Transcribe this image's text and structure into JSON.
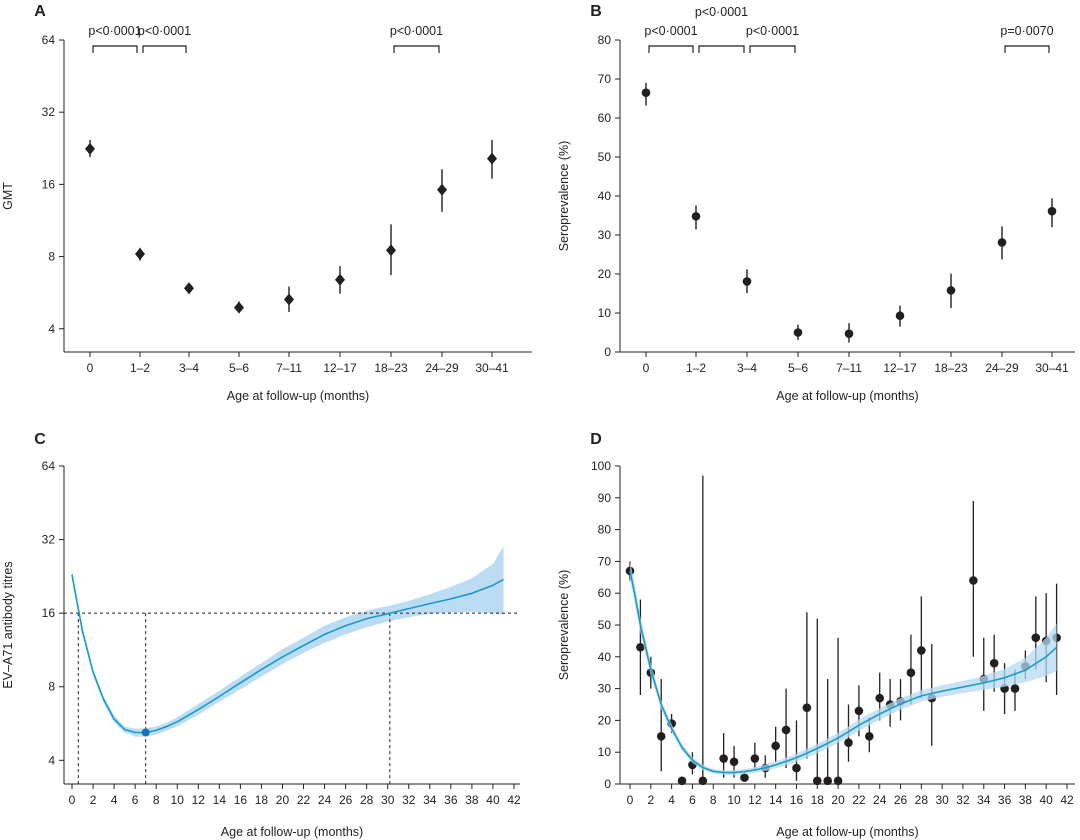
{
  "chart_data": [
    {
      "panel": "A",
      "type": "scatter",
      "marker": "diamond",
      "xlabel": "Age at follow-up (months)",
      "ylabel": "GMT",
      "y_scale": "log2",
      "yticks": [
        4,
        8,
        16,
        32,
        64
      ],
      "ylim": [
        3.2,
        64
      ],
      "categories": [
        "0",
        "1–2",
        "3–4",
        "5–6",
        "7–11",
        "12–17",
        "18–23",
        "24–29",
        "30–41"
      ],
      "values": [
        22.5,
        8.2,
        5.9,
        4.9,
        5.3,
        6.4,
        8.5,
        15.2,
        20.5
      ],
      "ci_low": [
        20.8,
        7.7,
        5.6,
        4.7,
        4.7,
        5.6,
        6.7,
        12.3,
        16.9
      ],
      "ci_high": [
        24.5,
        8.7,
        6.2,
        5.2,
        6.0,
        7.3,
        10.9,
        18.5,
        24.5
      ],
      "brackets": [
        {
          "from": 0,
          "to": 1,
          "label": "p<0·0001",
          "level": 0
        },
        {
          "from": 1,
          "to": 2,
          "label": "p<0·0001",
          "level": 0
        },
        {
          "from": 6,
          "to": 7,
          "label": "p<0·0001",
          "level": 0
        }
      ]
    },
    {
      "panel": "B",
      "type": "scatter",
      "marker": "circle",
      "xlabel": "Age at follow-up (months)",
      "ylabel": "Seroprevalence (%)",
      "yticks": [
        0,
        10,
        20,
        30,
        40,
        50,
        60,
        70,
        80
      ],
      "ylim": [
        0,
        80
      ],
      "categories": [
        "0",
        "1–2",
        "3–4",
        "5–6",
        "7–11",
        "12–17",
        "18–23",
        "24–29",
        "30–41"
      ],
      "values": [
        66.5,
        34.8,
        18.1,
        5.0,
        4.7,
        9.3,
        15.8,
        28.1,
        36.1
      ],
      "ci_low": [
        63.2,
        31.4,
        15.1,
        3.1,
        2.4,
        6.5,
        11.3,
        23.7,
        32.0
      ],
      "ci_high": [
        69.0,
        37.6,
        21.2,
        7.0,
        7.4,
        11.9,
        20.1,
        32.2,
        39.4
      ],
      "brackets": [
        {
          "from": 0,
          "to": 1,
          "label": "p<0·0001",
          "level": 0
        },
        {
          "from": 1,
          "to": 2,
          "label": "p<0·0001",
          "level": 1
        },
        {
          "from": 2,
          "to": 3,
          "label": "p<0·0001",
          "level": 0
        },
        {
          "from": 7,
          "to": 8,
          "label": "p=0·0070",
          "level": 0
        }
      ]
    },
    {
      "panel": "C",
      "type": "line",
      "xlabel": "Age at follow-up (months)",
      "ylabel": "EV–A71 antibody titres",
      "y_scale": "log2",
      "xticks": [
        0,
        2,
        4,
        6,
        8,
        10,
        12,
        14,
        16,
        18,
        20,
        22,
        24,
        26,
        28,
        30,
        32,
        34,
        36,
        38,
        40,
        42
      ],
      "xlim": [
        0,
        42
      ],
      "yticks": [
        4,
        8,
        16,
        32,
        64
      ],
      "ylim": [
        3.2,
        64
      ],
      "reference_y": 16,
      "reference_x": [
        0.6,
        7.0,
        30.2
      ],
      "minimum_point": {
        "x": 7.0,
        "y": 5.2
      },
      "line_color": "#1a9bc7",
      "band_color": "#b5d8f3",
      "x": [
        0,
        0.5,
        1,
        2,
        3,
        4,
        5,
        6,
        7,
        8,
        9,
        10,
        12,
        14,
        16,
        18,
        20,
        22,
        24,
        26,
        28,
        30,
        32,
        34,
        36,
        38,
        40,
        41
      ],
      "fit": [
        23,
        17.5,
        13.5,
        9.2,
        7.1,
        5.9,
        5.35,
        5.2,
        5.2,
        5.3,
        5.5,
        5.75,
        6.45,
        7.3,
        8.3,
        9.4,
        10.6,
        11.8,
        13.1,
        14.2,
        15.2,
        15.9,
        16.7,
        17.5,
        18.3,
        19.3,
        20.8,
        22
      ],
      "lower": [
        22,
        16.8,
        13.0,
        8.9,
        6.9,
        5.7,
        5.2,
        5.0,
        5.0,
        5.1,
        5.3,
        5.5,
        6.15,
        6.95,
        7.8,
        8.8,
        9.9,
        11.0,
        12.1,
        13.1,
        14.0,
        14.8,
        15.4,
        15.9,
        16.1,
        16.2,
        16.0,
        15.8
      ],
      "upper": [
        24,
        18.2,
        14.0,
        9.5,
        7.3,
        6.1,
        5.5,
        5.4,
        5.4,
        5.5,
        5.7,
        6.0,
        6.8,
        7.7,
        8.8,
        10.0,
        11.4,
        12.7,
        14.2,
        15.4,
        16.4,
        17.1,
        18.0,
        19.1,
        20.5,
        22.2,
        25.5,
        30
      ]
    },
    {
      "panel": "D",
      "type": "scatter",
      "xlabel": "Age at follow-up (months)",
      "ylabel": "Seroprevalence (%)",
      "xticks": [
        0,
        2,
        4,
        6,
        8,
        10,
        12,
        14,
        16,
        18,
        20,
        22,
        24,
        26,
        28,
        30,
        32,
        34,
        36,
        38,
        40,
        42
      ],
      "xlim": [
        0,
        42
      ],
      "yticks": [
        0,
        10,
        20,
        30,
        40,
        50,
        60,
        70,
        80,
        90,
        100
      ],
      "ylim": [
        0,
        100
      ],
      "line_color": "#1a9bc7",
      "band_color": "#b5d8f3",
      "points": {
        "x": [
          0,
          1,
          2,
          3,
          4,
          5,
          6,
          7,
          9,
          10,
          11,
          12,
          13,
          14,
          15,
          16,
          17,
          18,
          19,
          20,
          21,
          22,
          23,
          24,
          25,
          26,
          27,
          28,
          29,
          33,
          34,
          35,
          36,
          37,
          38,
          39,
          40,
          41
        ],
        "y": [
          67,
          43,
          35,
          15,
          19,
          1,
          6,
          1,
          8,
          7,
          2,
          8,
          5,
          12,
          17,
          5,
          24,
          1,
          1,
          1,
          13,
          23,
          15,
          27,
          25,
          26,
          35,
          42,
          27,
          64,
          33,
          38,
          30,
          30,
          37,
          46,
          45,
          46
        ],
        "lo": [
          64,
          28,
          30,
          4,
          16,
          0,
          3,
          0,
          2,
          2,
          1,
          4,
          2,
          7,
          5,
          1,
          8,
          0,
          0,
          0,
          7,
          15,
          10,
          20,
          18,
          20,
          25,
          27,
          12,
          40,
          23,
          29,
          22,
          23,
          33,
          36,
          32,
          28
        ],
        "hi": [
          70,
          58,
          40,
          33,
          22,
          2,
          10,
          97,
          16,
          12,
          4,
          13,
          9,
          18,
          30,
          20,
          54,
          52,
          33,
          46,
          25,
          31,
          21,
          35,
          33,
          33,
          47,
          59,
          44,
          89,
          46,
          47,
          38,
          36,
          42,
          59,
          60,
          63
        ]
      },
      "fit": {
        "x": [
          0,
          0.5,
          1,
          2,
          3,
          4,
          5,
          6,
          7,
          8,
          9,
          10,
          11,
          12,
          13,
          14,
          15,
          16,
          17,
          18,
          19,
          20,
          21,
          22,
          24,
          26,
          28,
          30,
          32,
          34,
          36,
          38,
          40,
          41
        ],
        "y": [
          67,
          59,
          50,
          36,
          25,
          17.5,
          11.5,
          7.5,
          5.2,
          4.0,
          3.6,
          3.6,
          3.9,
          4.4,
          5.1,
          6.0,
          7.1,
          8.3,
          9.7,
          11.2,
          12.8,
          14.5,
          16.4,
          18.5,
          22.0,
          25.2,
          27.7,
          29.2,
          30.5,
          31.8,
          33.4,
          35.8,
          40.0,
          43
        ],
        "lower": [
          64,
          56,
          47.5,
          34,
          23.5,
          16.2,
          10.4,
          6.6,
          4.4,
          3.3,
          2.9,
          2.8,
          3.1,
          3.5,
          4.1,
          4.9,
          5.9,
          7.0,
          8.3,
          9.7,
          11.2,
          12.9,
          14.7,
          16.7,
          20.2,
          23.4,
          25.9,
          27.4,
          28.6,
          29.6,
          30.6,
          32.0,
          34.0,
          35.5
        ],
        "upper": [
          70,
          62,
          52.5,
          38,
          26.5,
          18.8,
          12.6,
          8.4,
          6.0,
          4.7,
          4.3,
          4.4,
          4.7,
          5.3,
          6.1,
          7.1,
          8.3,
          9.6,
          11.1,
          12.7,
          14.4,
          16.1,
          18.1,
          20.3,
          23.8,
          27.0,
          29.5,
          31.0,
          32.4,
          34.0,
          36.2,
          39.6,
          46.0,
          50.5
        ]
      }
    }
  ]
}
